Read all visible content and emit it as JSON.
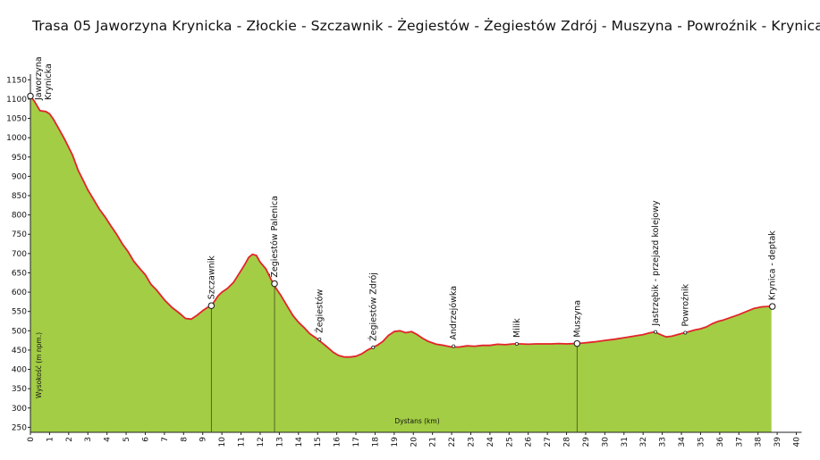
{
  "chart_data": {
    "type": "area",
    "title": "Trasa 05  Jaworzyna Krynicka - Złockie - Szczawnik - Żegiestów - Żegiestów Zdrój - Muszyna - Powroźnik - Krynica",
    "xlabel": "Dystans (km)",
    "ylabel": "Wysokość (m npm.)",
    "xlim": [
      0,
      40
    ],
    "ylim": [
      237,
      1160
    ],
    "x_ticks": [
      0,
      1,
      2,
      3,
      4,
      5,
      6,
      7,
      8,
      9,
      10,
      11,
      12,
      13,
      14,
      15,
      16,
      17,
      18,
      19,
      20,
      21,
      22,
      23,
      24,
      25,
      26,
      27,
      28,
      29,
      30,
      31,
      32,
      33,
      34,
      35,
      36,
      37,
      38,
      39,
      40
    ],
    "y_ticks": [
      250,
      300,
      350,
      400,
      450,
      500,
      550,
      600,
      650,
      700,
      750,
      800,
      850,
      900,
      950,
      1000,
      1050,
      1100,
      1150
    ],
    "grid": false,
    "legend": "none",
    "colors": {
      "fill": "#a3cd45",
      "line": "#e3242b"
    },
    "series": [
      {
        "x": [
          0,
          0.2,
          0.5,
          0.8,
          1.0,
          1.2,
          1.5,
          1.8,
          2.0,
          2.2,
          2.5,
          2.8,
          3.0,
          3.3,
          3.6,
          3.9,
          4.2,
          4.5,
          4.8,
          5.1,
          5.4,
          5.7,
          6.0,
          6.3,
          6.6,
          7.0,
          7.4,
          7.8,
          8.1,
          8.4,
          8.7,
          9.0,
          9.3,
          9.5,
          9.8,
          10.0,
          10.3,
          10.6,
          10.9,
          11.2,
          11.4,
          11.6,
          11.8,
          12.0,
          12.3,
          12.6,
          12.8,
          13.1,
          13.4,
          13.7,
          14.0,
          14.3,
          14.6,
          14.9,
          15.2,
          15.5,
          15.8,
          16.1,
          16.4,
          16.7,
          17.0,
          17.3,
          17.6,
          17.8,
          18.1,
          18.4,
          18.7,
          19.0,
          19.3,
          19.6,
          19.9,
          20.2,
          20.5,
          20.8,
          21.2,
          21.6,
          22.0,
          22.4,
          22.8,
          23.2,
          23.6,
          24.0,
          24.4,
          24.8,
          25.2,
          25.6,
          26.0,
          26.4,
          26.8,
          27.2,
          27.6,
          28.0,
          28.4,
          28.8,
          29.2,
          29.6,
          30.0,
          30.5,
          31.0,
          31.5,
          32.0,
          32.3,
          32.6,
          32.9,
          33.2,
          33.5,
          33.8,
          34.1,
          34.4,
          34.7,
          35.0,
          35.3,
          35.6,
          35.9,
          36.2,
          36.6,
          37.0,
          37.4,
          37.8,
          38.2,
          38.5,
          38.7
        ],
        "values": [
          1108,
          1095,
          1070,
          1068,
          1062,
          1048,
          1022,
          995,
          975,
          955,
          915,
          885,
          865,
          840,
          815,
          795,
          772,
          750,
          725,
          705,
          680,
          662,
          645,
          620,
          605,
          580,
          560,
          545,
          532,
          530,
          540,
          552,
          562,
          568,
          590,
          600,
          610,
          625,
          648,
          672,
          690,
          698,
          695,
          678,
          660,
          630,
          612,
          590,
          565,
          540,
          522,
          508,
          492,
          482,
          470,
          458,
          445,
          436,
          432,
          432,
          434,
          440,
          450,
          455,
          462,
          472,
          488,
          498,
          500,
          495,
          498,
          490,
          480,
          472,
          465,
          462,
          458,
          458,
          461,
          460,
          462,
          462,
          465,
          464,
          466,
          466,
          465,
          466,
          466,
          466,
          467,
          466,
          467,
          468,
          470,
          472,
          475,
          478,
          482,
          486,
          490,
          494,
          497,
          490,
          484,
          486,
          490,
          494,
          498,
          502,
          505,
          510,
          518,
          524,
          528,
          535,
          542,
          550,
          558,
          562,
          563,
          563
        ]
      }
    ],
    "waypoints": [
      {
        "name": "Jaworzyna\nKrynicka",
        "x": 0.0,
        "y": 1108,
        "marker": "circle"
      },
      {
        "name": "Szczawnik",
        "x": 9.45,
        "y": 565,
        "marker": "circle"
      },
      {
        "name": "Żegiestów  Palenica",
        "x": 12.75,
        "y": 622,
        "marker": "circle"
      },
      {
        "name": "Żegiestów",
        "x": 15.1,
        "y": 478,
        "marker": "dot"
      },
      {
        "name": "Żegiestów  Zdrój",
        "x": 17.9,
        "y": 457,
        "marker": "dot"
      },
      {
        "name": "Andrzejówka",
        "x": 22.1,
        "y": 460,
        "marker": "dot"
      },
      {
        "name": "Milik",
        "x": 25.4,
        "y": 466,
        "marker": "dot"
      },
      {
        "name": "Muszyna",
        "x": 28.55,
        "y": 467,
        "marker": "circle"
      },
      {
        "name": "Jastrzębik - przejazd kolejowy",
        "x": 32.65,
        "y": 497,
        "marker": "dot"
      },
      {
        "name": "Powroźnik",
        "x": 34.2,
        "y": 495,
        "marker": "dot"
      },
      {
        "name": "Krynica - deptak",
        "x": 38.75,
        "y": 563,
        "marker": "circle"
      }
    ]
  }
}
